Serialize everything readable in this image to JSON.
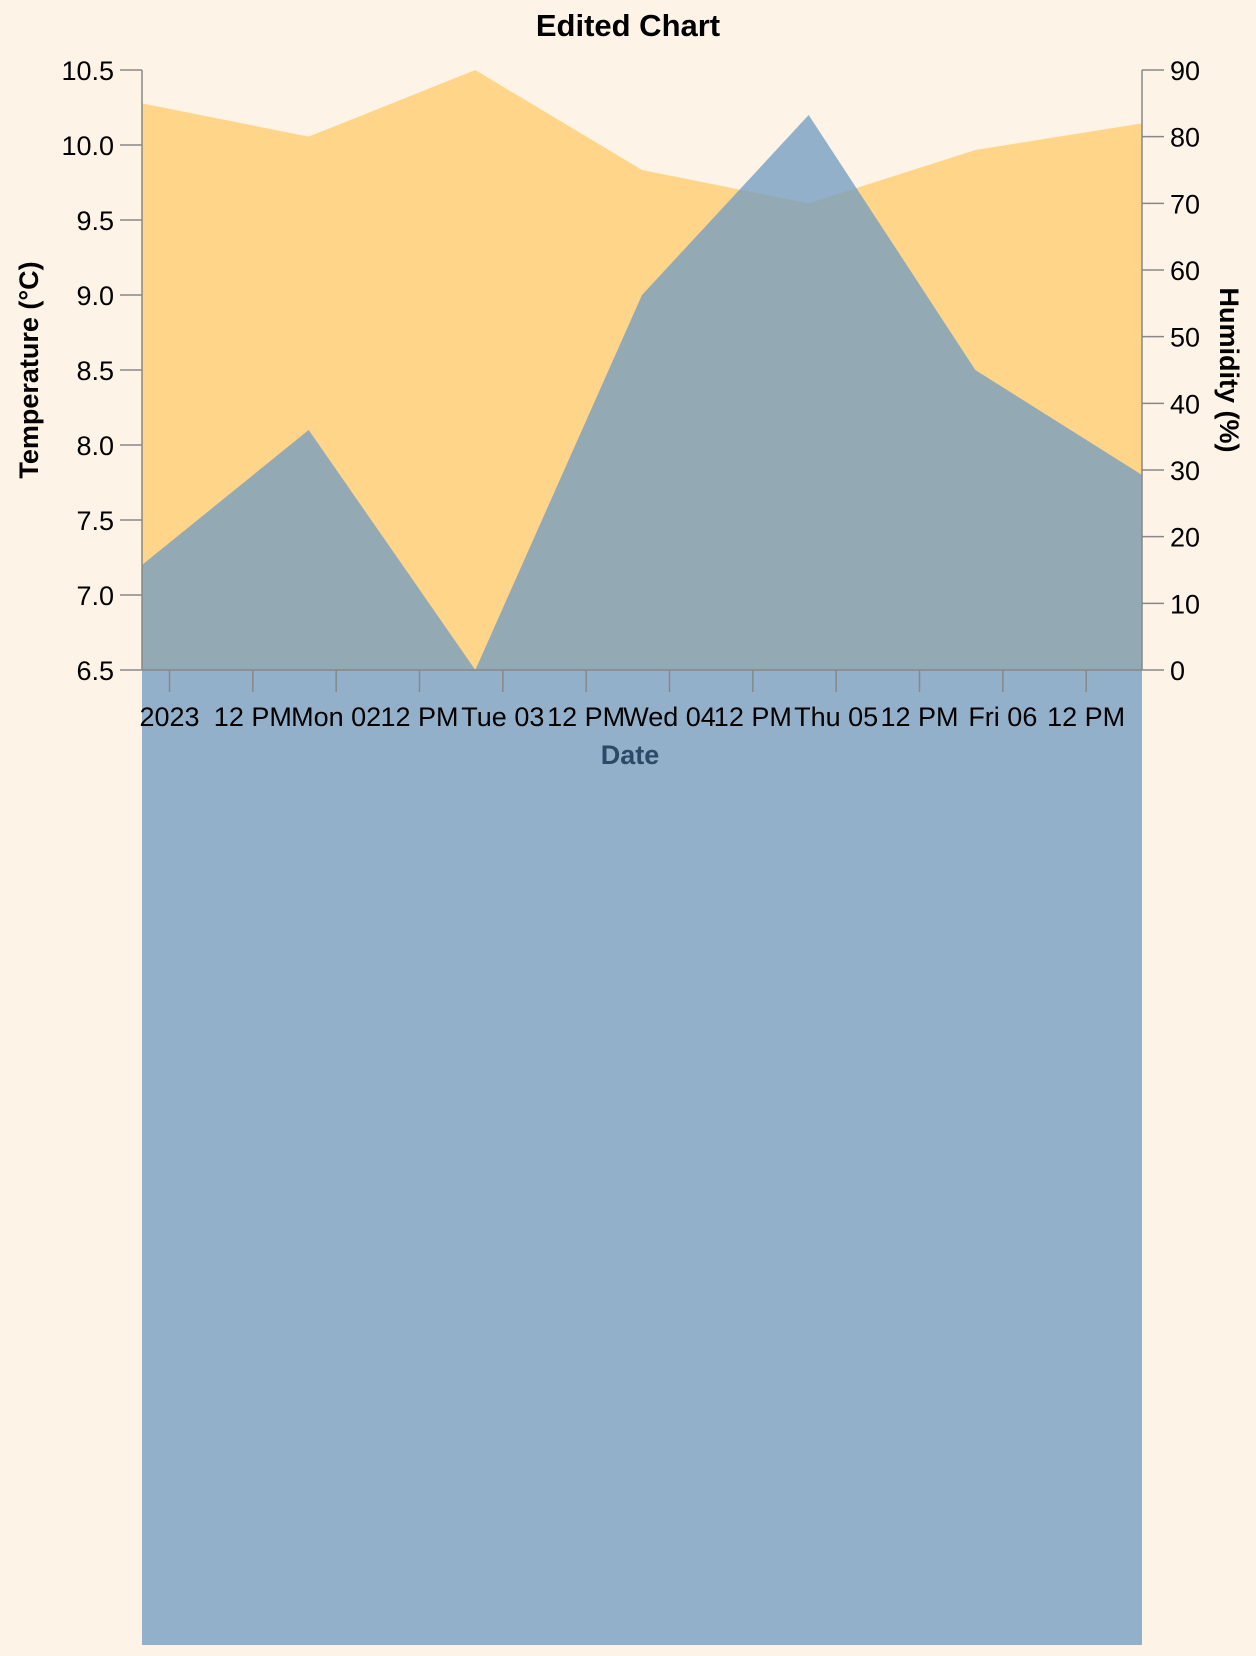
{
  "chart_data": {
    "type": "area",
    "title": "Edited Chart",
    "xlabel": "Date",
    "ylabel_left": "Temperature (°C)",
    "ylabel_right": "Humidity (%)",
    "x_ticks": [
      "2023",
      "12 PM",
      "Mon 02",
      "12 PM",
      "Tue 03",
      "12 PM",
      "Wed 04",
      "12 PM",
      "Thu 05",
      "12 PM",
      "Fri 06",
      "12 PM"
    ],
    "x": [
      "2023-01-01 00:00",
      "2023-01-02 00:00",
      "2023-01-03 00:00",
      "2023-01-04 00:00",
      "2023-01-05 00:00",
      "2023-01-06 00:00",
      "2023-01-07 00:00"
    ],
    "ylim_left": [
      6.5,
      10.5
    ],
    "yticks_left": [
      6.5,
      7.0,
      7.5,
      8.0,
      8.5,
      9.0,
      9.5,
      10.0,
      10.5
    ],
    "ylim_right": [
      0,
      90
    ],
    "yticks_right": [
      0,
      10,
      20,
      30,
      40,
      50,
      60,
      70,
      80,
      90
    ],
    "series": [
      {
        "name": "Humidity (%)",
        "axis": "right",
        "color": "#ffd58a",
        "values": [
          85,
          80,
          90,
          75,
          70,
          78,
          82
        ]
      },
      {
        "name": "Temperature (°C)",
        "axis": "left",
        "color": "#6f9ac0",
        "values": [
          7.2,
          8.1,
          6.5,
          9.0,
          10.2,
          8.5,
          7.8
        ]
      }
    ]
  }
}
